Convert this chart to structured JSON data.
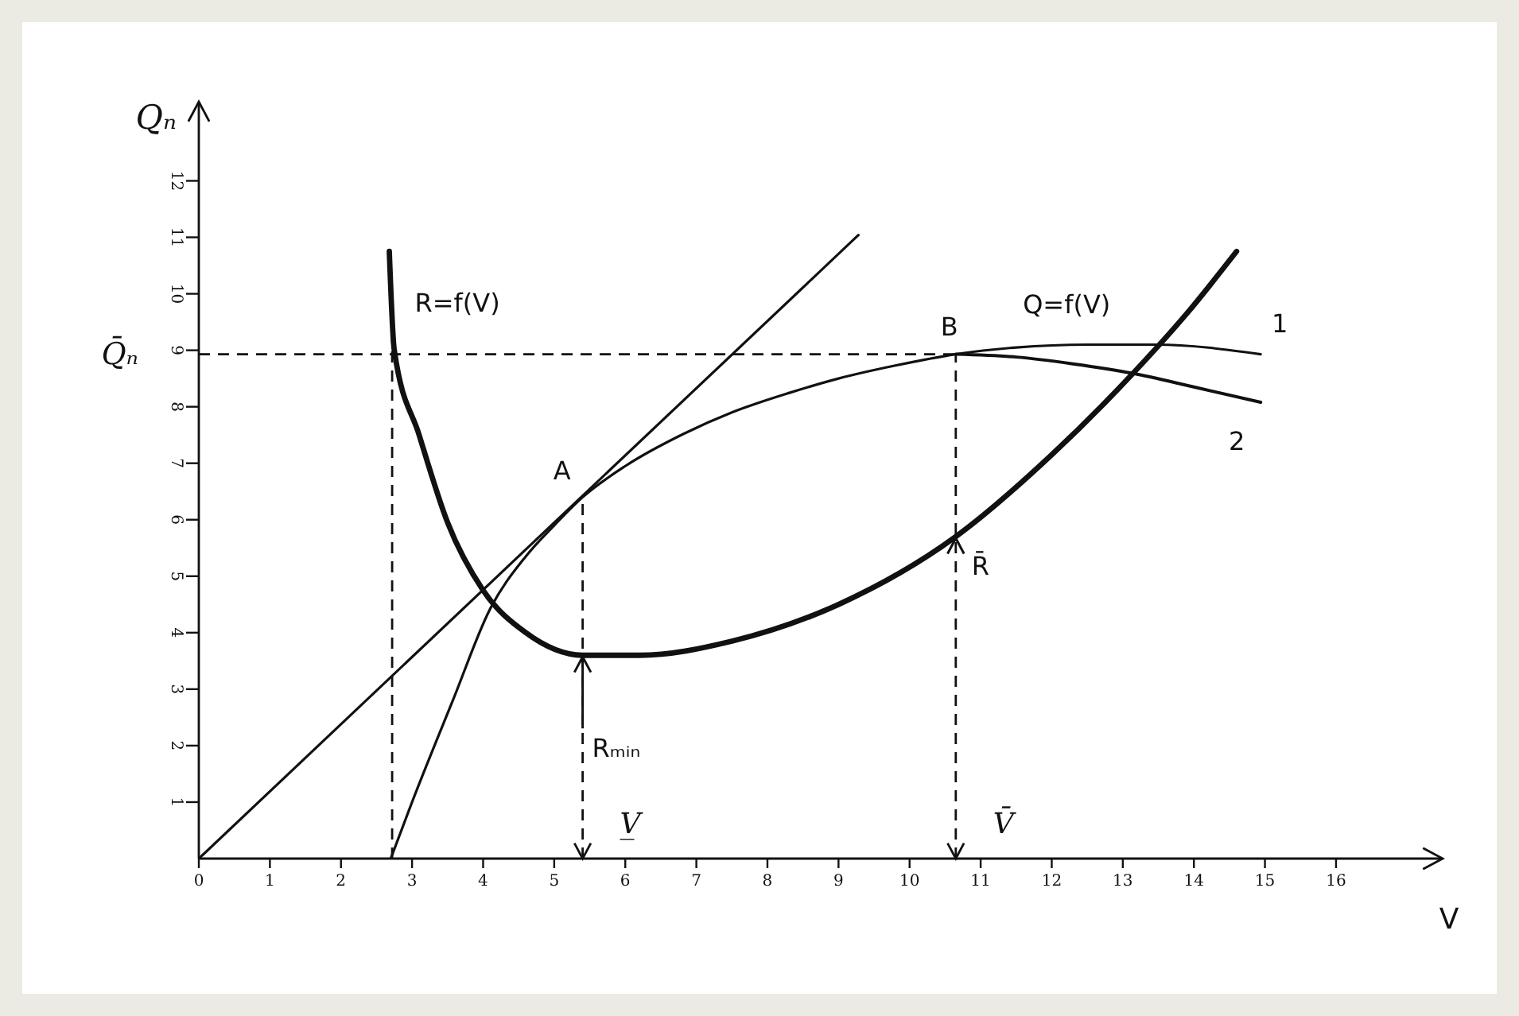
{
  "chart_data": {
    "type": "line",
    "xlabel": "V",
    "ylabel": "Qₙ",
    "xlim": [
      0,
      17.5
    ],
    "ylim": [
      0,
      13.4
    ],
    "xticks": [
      0,
      1,
      2,
      3,
      4,
      5,
      6,
      7,
      8,
      9,
      10,
      11,
      12,
      13,
      14,
      15,
      16
    ],
    "yticks": [
      1,
      2,
      3,
      4,
      5,
      6,
      7,
      8,
      9,
      10,
      11,
      12
    ],
    "series": [
      {
        "color": "#111111",
        "x": [
          0,
          9.28
        ],
        "values": [
          0,
          11.04
        ]
      },
      {
        "name": "Q=f(V)",
        "color": "#111111",
        "x": [
          2.7,
          3.0,
          3.58,
          4.09,
          4.6,
          5.0,
          5.4,
          6.0,
          6.82,
          7.5,
          8.32,
          9.0,
          9.8,
          10.65,
          11.5,
          12.5,
          13.47,
          14.94
        ],
        "values": [
          0,
          1.0,
          2.82,
          4.4,
          5.35,
          5.9,
          6.4,
          6.95,
          7.52,
          7.9,
          8.25,
          8.5,
          8.73,
          8.93,
          9.05,
          9.1,
          9.1,
          8.93
        ]
      },
      {
        "color": "#111111",
        "x": [
          10.65,
          11.5,
          12.3,
          13.15,
          14.0,
          14.94
        ],
        "values": [
          8.93,
          8.88,
          8.76,
          8.59,
          8.35,
          8.08
        ]
      },
      {
        "name": "R=f(V)",
        "color": "#111111",
        "x": [
          2.68,
          2.75,
          3.1,
          3.5,
          4.0,
          4.6,
          5.4,
          6.2,
          7.5,
          9.0,
          10.65,
          12.0,
          13.15,
          13.9,
          14.6
        ],
        "values": [
          10.75,
          9.0,
          7.5,
          5.95,
          4.75,
          4.0,
          3.6,
          3.6,
          3.85,
          4.5,
          5.7,
          7.15,
          8.6,
          9.65,
          10.75
        ]
      }
    ],
    "ref_lines": [
      {
        "axis": "x",
        "value": 2.72,
        "color": "#111111",
        "line_style": "dashed"
      },
      {
        "axis": "y",
        "value": 8.93,
        "label": "Q̄ₙ",
        "color": "#111111",
        "line_style": "dashed"
      },
      {
        "axis": "x",
        "value": 5.4,
        "label": "V̲",
        "color": "#111111",
        "line_style": "dashed"
      },
      {
        "axis": "x",
        "value": 10.65,
        "label": "V̄",
        "color": "#111111",
        "line_style": "dashed"
      }
    ],
    "annotations": [
      {
        "text": "A",
        "x": 5.4,
        "y": 6.4
      },
      {
        "text": "B",
        "x": 10.65,
        "y": 8.93
      },
      {
        "text": "Rₘᵢₙ",
        "x": 5.4,
        "y": 3.6
      },
      {
        "text": "R̄",
        "x": 10.65,
        "y": 5.7
      },
      {
        "text": "1",
        "x": 14.94,
        "y": 8.93
      },
      {
        "text": "2",
        "x": 14.94,
        "y": 8.08
      }
    ]
  }
}
